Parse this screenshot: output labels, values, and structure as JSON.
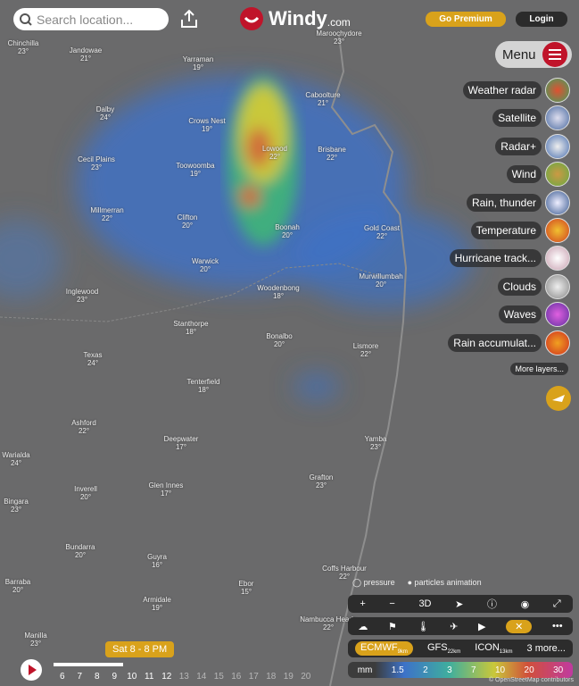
{
  "search": {
    "placeholder": "Search location..."
  },
  "logo": {
    "brand": "Windy",
    "suffix": ".com"
  },
  "header": {
    "premium": "Go Premium",
    "login": "Login"
  },
  "menu": {
    "label": "Menu"
  },
  "layers": [
    "Weather radar",
    "Satellite",
    "Radar+",
    "Wind",
    "Rain, thunder",
    "Temperature",
    "Hurricane track...",
    "Clouds",
    "Waves",
    "Rain accumulat..."
  ],
  "more_layers": "More layers...",
  "map": {
    "places": [
      {
        "name": "Chinchilla",
        "temp": "23°"
      },
      {
        "name": "Jandowae",
        "temp": "21°"
      },
      {
        "name": "Yarraman",
        "temp": "19°"
      },
      {
        "name": "Maroochydore",
        "temp": "23°"
      },
      {
        "name": "Caboolture",
        "temp": "21°"
      },
      {
        "name": "Dalby",
        "temp": "24°"
      },
      {
        "name": "Crows Nest",
        "temp": "19°"
      },
      {
        "name": "Lowood",
        "temp": "22°"
      },
      {
        "name": "Brisbane",
        "temp": "22°"
      },
      {
        "name": "Cecil Plains",
        "temp": "23°"
      },
      {
        "name": "Toowoomba",
        "temp": "19°"
      },
      {
        "name": "Millmerran",
        "temp": "22°"
      },
      {
        "name": "Clifton",
        "temp": "20°"
      },
      {
        "name": "Boonah",
        "temp": "20°"
      },
      {
        "name": "Gold Coast",
        "temp": "22°"
      },
      {
        "name": "Warwick",
        "temp": "20°"
      },
      {
        "name": "Murwillumbah",
        "temp": "20°"
      },
      {
        "name": "Inglewood",
        "temp": "23°"
      },
      {
        "name": "Woodenbong",
        "temp": "18°"
      },
      {
        "name": "Stanthorpe",
        "temp": "18°"
      },
      {
        "name": "Bonalbo",
        "temp": "20°"
      },
      {
        "name": "Lismore",
        "temp": "22°"
      },
      {
        "name": "Texas",
        "temp": "24°"
      },
      {
        "name": "Tenterfield",
        "temp": "18°"
      },
      {
        "name": "Ashford",
        "temp": "22°"
      },
      {
        "name": "Deepwater",
        "temp": "17°"
      },
      {
        "name": "Yamba",
        "temp": "23°"
      },
      {
        "name": "Warialda",
        "temp": "24°"
      },
      {
        "name": "Inverell",
        "temp": "20°"
      },
      {
        "name": "Glen Innes",
        "temp": "17°"
      },
      {
        "name": "Grafton",
        "temp": "23°"
      },
      {
        "name": "Bingara",
        "temp": "23°"
      },
      {
        "name": "Bundarra",
        "temp": "20°"
      },
      {
        "name": "Guyra",
        "temp": "16°"
      },
      {
        "name": "Ebor",
        "temp": "15°"
      },
      {
        "name": "Coffs Harbour",
        "temp": "22°"
      },
      {
        "name": "Barraba",
        "temp": "20°"
      },
      {
        "name": "Armidale",
        "temp": "19°"
      },
      {
        "name": "Nambucca Heads",
        "temp": "22°"
      },
      {
        "name": "Manilla",
        "temp": "23°"
      }
    ]
  },
  "overlay_options": {
    "pressure": "pressure",
    "particles": "particles animation"
  },
  "controls": {
    "view3d": "3D"
  },
  "timeline": {
    "current": "Sat 8 - 8 PM",
    "hours": [
      "6",
      "7",
      "8",
      "9",
      "10",
      "11",
      "12",
      "13",
      "14",
      "15",
      "16",
      "17",
      "18",
      "19",
      "20"
    ]
  },
  "models": [
    {
      "name": "ECMWF",
      "res": "9km"
    },
    {
      "name": "GFS",
      "res": "22km"
    },
    {
      "name": "ICON",
      "res": "13km"
    },
    {
      "name": "3 more..."
    }
  ],
  "legend": {
    "unit": "mm",
    "values": [
      "1.5",
      "2",
      "3",
      "7",
      "10",
      "20",
      "30"
    ]
  },
  "attribution": "© OpenStreetMap contributors"
}
